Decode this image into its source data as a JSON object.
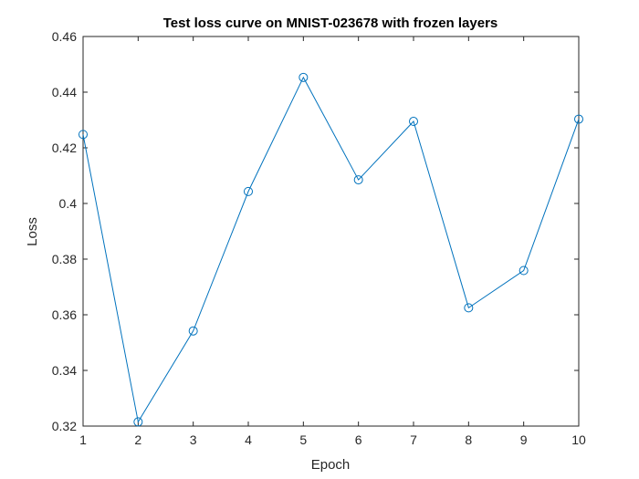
{
  "chart_data": {
    "type": "line",
    "title": "Test loss curve on MNIST-023678 with frozen layers",
    "xlabel": "Epoch",
    "ylabel": "Loss",
    "x": [
      1,
      2,
      3,
      4,
      5,
      6,
      7,
      8,
      9,
      10
    ],
    "series": [
      {
        "values": [
          0.4248,
          0.3215,
          0.3542,
          0.4043,
          0.4453,
          0.4085,
          0.4295,
          0.3625,
          0.3759,
          0.4303
        ],
        "color": "#0072BD",
        "marker": "circle-open"
      }
    ],
    "xlim": [
      1,
      10
    ],
    "ylim": [
      0.32,
      0.46
    ],
    "xticks": [
      "1",
      "2",
      "3",
      "4",
      "5",
      "6",
      "7",
      "8",
      "9",
      "10"
    ],
    "yticks": [
      "0.32",
      "0.34",
      "0.36",
      "0.38",
      "0.4",
      "0.42",
      "0.44",
      "0.46"
    ],
    "grid": false,
    "box": true
  }
}
